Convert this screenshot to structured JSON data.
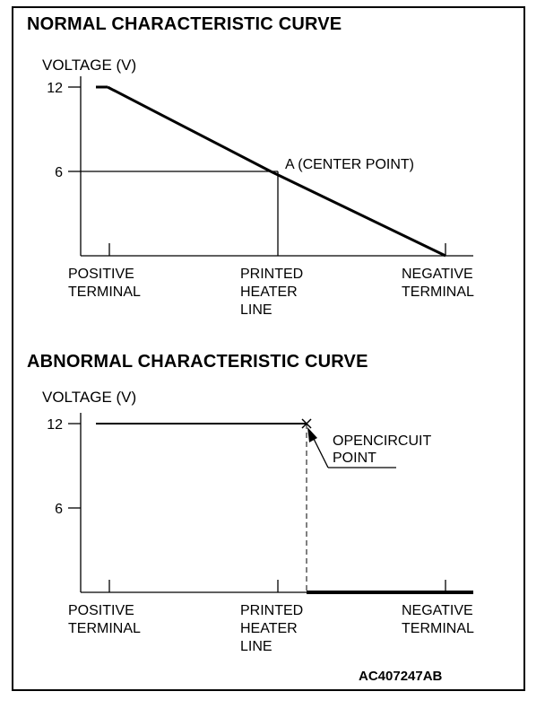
{
  "figure_code": "AC407247AB",
  "chart_data": [
    {
      "type": "line",
      "title": "NORMAL CHARACTERISTIC CURVE",
      "ylabel": "VOLTAGE (V)",
      "xlabel": "",
      "y_ticks": [
        12,
        6
      ],
      "ylim": [
        0,
        12
      ],
      "x_categories": [
        [
          "POSITIVE",
          "TERMINAL"
        ],
        [
          "PRINTED",
          "HEATER",
          "LINE"
        ],
        [
          "NEGATIVE",
          "TERMINAL"
        ]
      ],
      "series": [
        {
          "points": [
            [
              0,
              12
            ],
            [
              0.5,
              6
            ],
            [
              1,
              0
            ]
          ]
        }
      ],
      "annotations": [
        {
          "text": "A (CENTER POINT)",
          "x": 0.5,
          "y": 6
        }
      ]
    },
    {
      "type": "line",
      "title": "ABNORMAL CHARACTERISTIC CURVE",
      "ylabel": "VOLTAGE (V)",
      "xlabel": "",
      "y_ticks": [
        12,
        6
      ],
      "ylim": [
        0,
        12
      ],
      "x_categories": [
        [
          "POSITIVE",
          "TERMINAL"
        ],
        [
          "PRINTED",
          "HEATER",
          "LINE"
        ],
        [
          "NEGATIVE",
          "TERMINAL"
        ]
      ],
      "series": [
        {
          "points": [
            [
              0,
              12
            ],
            [
              0.59,
              12
            ]
          ]
        },
        {
          "points": [
            [
              0.59,
              0
            ],
            [
              1,
              0
            ]
          ]
        }
      ],
      "annotations": [
        {
          "text": [
            "OPENCIRCUIT",
            "POINT"
          ],
          "x": 0.59,
          "y": 12
        }
      ]
    }
  ]
}
